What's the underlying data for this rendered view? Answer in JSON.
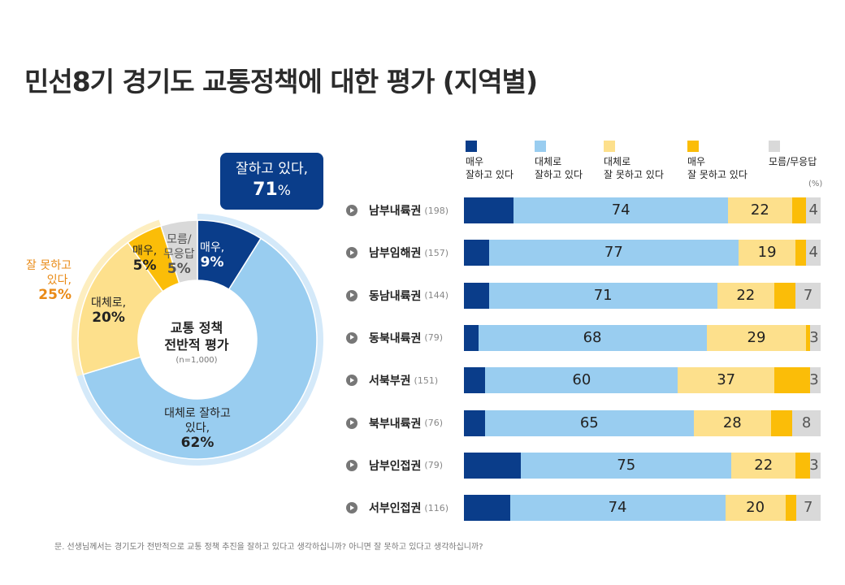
{
  "title": "민선8기 경기도 교통정책에 대한 평가 (지역별)",
  "callout": {
    "label": "잘하고 있다,",
    "value": "71",
    "unit": "%"
  },
  "donut": {
    "center_title_1": "교통 정책",
    "center_title_2": "전반적 평가",
    "center_n": "(n=1,000)",
    "negative_label_1": "잘 못하고",
    "negative_label_2": "있다,",
    "negative_value": "25%",
    "slices": [
      {
        "label_1": "매우,",
        "label_2": "",
        "value": 9,
        "color": "#0a3d8a"
      },
      {
        "label_1": "대체로 잘하고",
        "label_2": "있다,",
        "value": 62,
        "color": "#99cdf0"
      },
      {
        "label_1": "대체로,",
        "label_2": "",
        "value": 20,
        "color": "#fde08c"
      },
      {
        "label_1": "매우,",
        "label_2": "",
        "value": 5,
        "color": "#fbbd08"
      },
      {
        "label_1": "모름/",
        "label_2": "무응답",
        "value": 5,
        "color": "#d9d9d9"
      }
    ]
  },
  "chart_data": {
    "type": "bar",
    "stacked": true,
    "orientation": "horizontal",
    "unit": "(%)",
    "series": [
      {
        "name": "매우 잘하고 있다",
        "color": "#0a3d8a"
      },
      {
        "name": "대체로 잘하고 있다",
        "color": "#99cdf0"
      },
      {
        "name": "대체로 잘 못하고 있다",
        "color": "#fde08c"
      },
      {
        "name": "매우 잘 못하고 있다",
        "color": "#fbbd08"
      },
      {
        "name": "모름/무응답",
        "color": "#d9d9d9"
      }
    ],
    "legend": [
      {
        "line1": "매우",
        "line2": "잘하고 있다"
      },
      {
        "line1": "대체로",
        "line2": "잘하고 있다"
      },
      {
        "line1": "대체로",
        "line2": "잘 못하고 있다"
      },
      {
        "line1": "매우",
        "line2": "잘 못하고 있다"
      },
      {
        "line1": "모름/무응답",
        "line2": ""
      }
    ],
    "rows": [
      {
        "region": "남부내륙권",
        "n": "(198)",
        "values": [
          14,
          60,
          18,
          4,
          4
        ],
        "positive": "74",
        "negative": "22",
        "dk": "4"
      },
      {
        "region": "남부임해권",
        "n": "(157)",
        "values": [
          7,
          70,
          16,
          3,
          4
        ],
        "positive": "77",
        "negative": "19",
        "dk": "4"
      },
      {
        "region": "동남내륙권",
        "n": "(144)",
        "values": [
          7,
          64,
          16,
          6,
          7
        ],
        "positive": "71",
        "negative": "22",
        "dk": "7"
      },
      {
        "region": "동북내륙권",
        "n": "(79)",
        "values": [
          4,
          64,
          28,
          1,
          3
        ],
        "positive": "68",
        "negative": "29",
        "dk": "3"
      },
      {
        "region": "서북부권",
        "n": "(151)",
        "values": [
          6,
          54,
          27,
          10,
          3
        ],
        "positive": "60",
        "negative": "37",
        "dk": "3"
      },
      {
        "region": "북부내륙권",
        "n": "(76)",
        "values": [
          6,
          59,
          22,
          6,
          8
        ],
        "positive": "65",
        "negative": "28",
        "dk": "8"
      },
      {
        "region": "남부인접권",
        "n": "(79)",
        "values": [
          16,
          59,
          18,
          4,
          3
        ],
        "positive": "75",
        "negative": "22",
        "dk": "3"
      },
      {
        "region": "서부인접권",
        "n": "(116)",
        "values": [
          13,
          61,
          17,
          3,
          7
        ],
        "positive": "74",
        "negative": "20",
        "dk": "7"
      }
    ]
  },
  "footer": "문. 선생님께서는  경기도가  전반적으로  교통 정책 추진을 잘하고 있다고 생각하십니까?  아니면 잘 못하고 있다고 생각하십니까?"
}
